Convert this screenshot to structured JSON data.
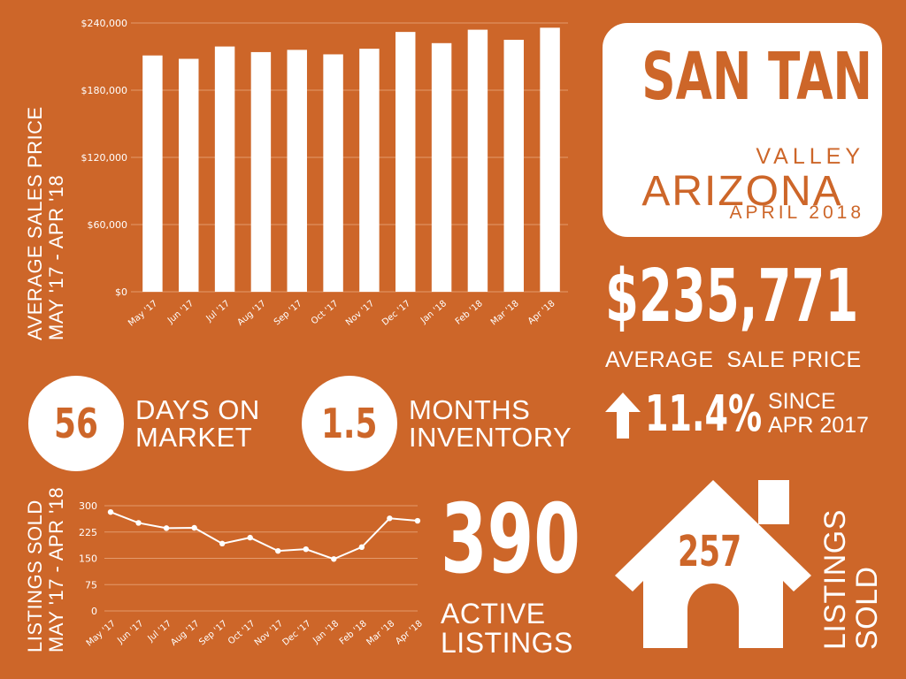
{
  "colors": {
    "background": "#cd6629",
    "foreground": "#ffffff",
    "gridline": "#e39a6c"
  },
  "title": {
    "city": "SAN TAN",
    "valley": "VALLEY",
    "state": "ARIZONA",
    "date": "APRIL 2018"
  },
  "avg_price": {
    "value": "$235,771",
    "label": "AVERAGE  SALE PRICE",
    "change": "11.4%",
    "change_label_line1": "SINCE",
    "change_label_line2": "APR 2017",
    "arrow_icon": "arrow-up-icon"
  },
  "days_on_market": {
    "value": "56",
    "line1": "DAYS ON",
    "line2": "MARKET"
  },
  "months_inventory": {
    "value": "1.5",
    "line1": "MONTHS",
    "line2": "INVENTORY"
  },
  "active_listings": {
    "value": "390",
    "line1": "ACTIVE",
    "line2": "LISTINGS"
  },
  "listings_sold": {
    "value": "257",
    "line1": "LISTINGS",
    "line2": "SOLD",
    "icon": "house-icon"
  },
  "chart_data": [
    {
      "type": "bar",
      "ylabel_line1": "AVERAGE SALES PRICE",
      "ylabel_line2": "MAY '17 - APR '18",
      "categories": [
        "May '17",
        "Jun '17",
        "Jul '17",
        "Aug '17",
        "Sep '17",
        "Oct '17",
        "Nov '17",
        "Dec '17",
        "Jan '18",
        "Feb '18",
        "Mar '18",
        "Apr '18"
      ],
      "values": [
        211000,
        208000,
        219000,
        214000,
        216000,
        212000,
        217000,
        232000,
        222000,
        234000,
        225000,
        235771
      ],
      "ylim": [
        0,
        240000
      ],
      "yticks": [
        0,
        60000,
        120000,
        180000,
        240000
      ],
      "ytick_labels": [
        "$0",
        "$60,000",
        "$120,000",
        "$180,000",
        "$240,000"
      ],
      "grid": true
    },
    {
      "type": "line",
      "ylabel_line1": "LISTINGS SOLD",
      "ylabel_line2": "MAY '17 - APR '18",
      "categories": [
        "May '17",
        "Jun '17",
        "Jul '17",
        "Aug '17",
        "Sep '17",
        "Oct '17",
        "Nov '17",
        "Dec '17",
        "Jan '18",
        "Feb '18",
        "Mar '18",
        "Apr '18"
      ],
      "values": [
        282,
        251,
        236,
        237,
        192,
        209,
        171,
        176,
        148,
        182,
        264,
        257
      ],
      "ylim": [
        0,
        300
      ],
      "yticks": [
        0,
        75,
        150,
        225,
        300
      ],
      "ytick_labels": [
        "0",
        "75",
        "150",
        "225",
        "300"
      ],
      "grid": true
    }
  ]
}
